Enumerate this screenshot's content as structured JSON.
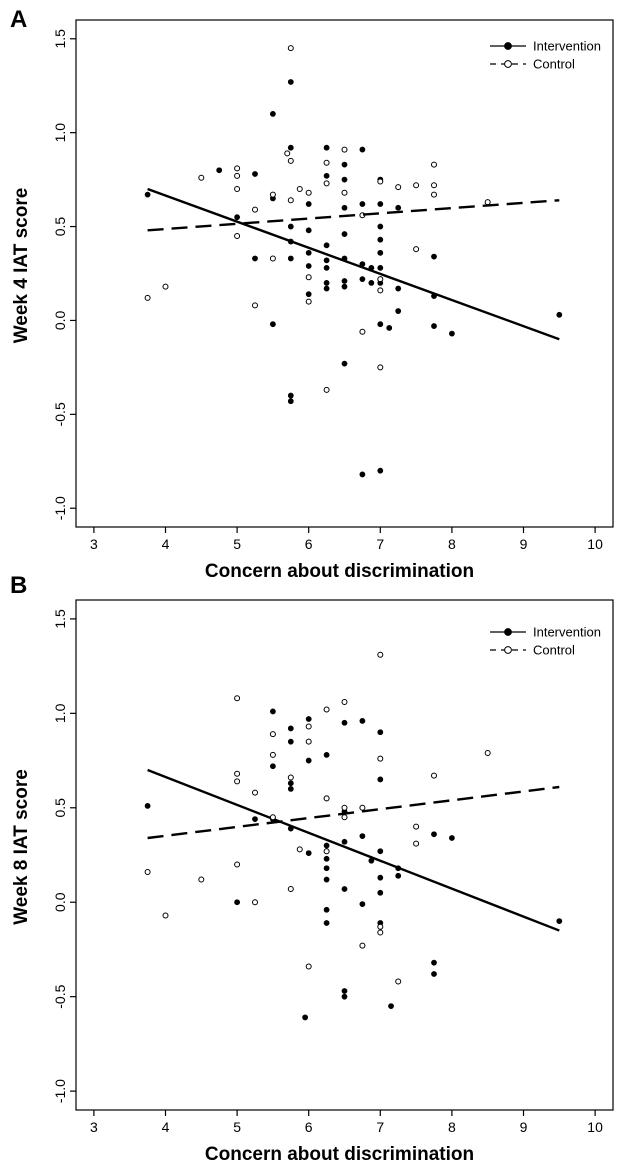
{
  "colors": {
    "background": "#ffffff",
    "ink": "#000000"
  },
  "chart_data": [
    {
      "type": "scatter",
      "panel_label": "A",
      "xlabel": "Concern about discrimination",
      "ylabel": "Week 4 IAT score",
      "xlim": [
        2.75,
        10.25
      ],
      "ylim": [
        -1.1,
        1.6
      ],
      "xticks": [
        3,
        4,
        5,
        6,
        7,
        8,
        9,
        10
      ],
      "yticks": [
        -1.0,
        -0.5,
        0.0,
        0.5,
        1.0,
        1.5
      ],
      "legend_position": "top-right",
      "legend": [
        "Intervention",
        "Control"
      ],
      "series": [
        {
          "name": "Intervention",
          "marker": "filled-circle",
          "line_style": "solid",
          "fit": {
            "x": [
              3.75,
              9.5
            ],
            "y": [
              0.7,
              -0.1
            ]
          },
          "points": [
            [
              3.75,
              0.67
            ],
            [
              4.75,
              0.8
            ],
            [
              5.0,
              0.55
            ],
            [
              5.25,
              0.78
            ],
            [
              5.25,
              0.33
            ],
            [
              5.5,
              1.1
            ],
            [
              5.5,
              0.65
            ],
            [
              5.5,
              -0.02
            ],
            [
              5.75,
              1.27
            ],
            [
              5.75,
              0.92
            ],
            [
              5.75,
              0.42
            ],
            [
              5.75,
              0.33
            ],
            [
              5.75,
              -0.4
            ],
            [
              5.75,
              -0.43
            ],
            [
              5.75,
              0.5
            ],
            [
              6.0,
              0.62
            ],
            [
              6.0,
              0.48
            ],
            [
              6.0,
              0.36
            ],
            [
              6.0,
              0.29
            ],
            [
              6.0,
              0.14
            ],
            [
              6.25,
              0.92
            ],
            [
              6.25,
              0.77
            ],
            [
              6.25,
              0.4
            ],
            [
              6.25,
              0.32
            ],
            [
              6.25,
              0.28
            ],
            [
              6.25,
              0.2
            ],
            [
              6.25,
              0.17
            ],
            [
              6.5,
              0.83
            ],
            [
              6.5,
              0.75
            ],
            [
              6.5,
              0.6
            ],
            [
              6.5,
              0.46
            ],
            [
              6.5,
              0.33
            ],
            [
              6.5,
              0.21
            ],
            [
              6.5,
              0.18
            ],
            [
              6.5,
              -0.23
            ],
            [
              6.75,
              0.91
            ],
            [
              6.75,
              0.62
            ],
            [
              6.75,
              0.3
            ],
            [
              6.75,
              0.22
            ],
            [
              6.75,
              -0.82
            ],
            [
              6.875,
              0.28
            ],
            [
              6.875,
              0.2
            ],
            [
              7.0,
              0.75
            ],
            [
              7.0,
              0.62
            ],
            [
              7.0,
              0.5
            ],
            [
              7.0,
              0.43
            ],
            [
              7.0,
              0.36
            ],
            [
              7.0,
              0.28
            ],
            [
              7.0,
              0.2
            ],
            [
              7.0,
              -0.02
            ],
            [
              7.0,
              -0.8
            ],
            [
              7.125,
              -0.04
            ],
            [
              7.25,
              0.6
            ],
            [
              7.25,
              0.17
            ],
            [
              7.25,
              0.05
            ],
            [
              7.75,
              0.34
            ],
            [
              7.75,
              0.13
            ],
            [
              7.75,
              -0.03
            ],
            [
              8.0,
              -0.07
            ],
            [
              9.5,
              0.03
            ]
          ]
        },
        {
          "name": "Control",
          "marker": "open-circle",
          "line_style": "dashed",
          "fit": {
            "x": [
              3.75,
              9.5
            ],
            "y": [
              0.48,
              0.64
            ]
          },
          "points": [
            [
              3.75,
              0.12
            ],
            [
              4.0,
              0.18
            ],
            [
              4.5,
              0.76
            ],
            [
              5.0,
              0.81
            ],
            [
              5.0,
              0.77
            ],
            [
              5.0,
              0.7
            ],
            [
              5.0,
              0.45
            ],
            [
              5.25,
              0.59
            ],
            [
              5.25,
              0.08
            ],
            [
              5.5,
              0.67
            ],
            [
              5.5,
              0.33
            ],
            [
              5.7,
              0.89
            ],
            [
              5.75,
              1.45
            ],
            [
              5.75,
              0.85
            ],
            [
              5.75,
              0.64
            ],
            [
              5.875,
              0.7
            ],
            [
              6.0,
              0.68
            ],
            [
              6.0,
              0.23
            ],
            [
              6.0,
              0.1
            ],
            [
              6.25,
              0.84
            ],
            [
              6.25,
              0.73
            ],
            [
              6.25,
              -0.37
            ],
            [
              6.5,
              0.91
            ],
            [
              6.5,
              0.68
            ],
            [
              6.75,
              0.56
            ],
            [
              6.75,
              -0.06
            ],
            [
              7.0,
              0.74
            ],
            [
              7.0,
              0.22
            ],
            [
              7.0,
              0.16
            ],
            [
              7.0,
              -0.25
            ],
            [
              7.25,
              0.71
            ],
            [
              7.5,
              0.72
            ],
            [
              7.5,
              0.38
            ],
            [
              7.75,
              0.83
            ],
            [
              7.75,
              0.72
            ],
            [
              7.75,
              0.67
            ],
            [
              8.5,
              0.63
            ]
          ]
        }
      ]
    },
    {
      "type": "scatter",
      "panel_label": "B",
      "xlabel": "Concern about discrimination",
      "ylabel": "Week 8 IAT score",
      "xlim": [
        2.75,
        10.25
      ],
      "ylim": [
        -1.1,
        1.6
      ],
      "xticks": [
        3,
        4,
        5,
        6,
        7,
        8,
        9,
        10
      ],
      "yticks": [
        -1.0,
        -0.5,
        0.0,
        0.5,
        1.0,
        1.5
      ],
      "legend_position": "top-right",
      "legend": [
        "Intervention",
        "Control"
      ],
      "series": [
        {
          "name": "Intervention",
          "marker": "filled-circle",
          "line_style": "solid",
          "fit": {
            "x": [
              3.75,
              9.5
            ],
            "y": [
              0.7,
              -0.15
            ]
          },
          "points": [
            [
              3.75,
              0.51
            ],
            [
              5.0,
              0.0
            ],
            [
              5.25,
              0.44
            ],
            [
              5.5,
              1.01
            ],
            [
              5.5,
              0.72
            ],
            [
              5.5,
              0.44
            ],
            [
              5.75,
              0.92
            ],
            [
              5.75,
              0.85
            ],
            [
              5.75,
              0.63
            ],
            [
              5.75,
              0.6
            ],
            [
              5.75,
              0.39
            ],
            [
              6.0,
              0.97
            ],
            [
              6.0,
              0.75
            ],
            [
              6.0,
              0.26
            ],
            [
              5.95,
              -0.61
            ],
            [
              6.25,
              0.78
            ],
            [
              6.25,
              0.55
            ],
            [
              6.25,
              0.3
            ],
            [
              6.25,
              0.23
            ],
            [
              6.25,
              0.18
            ],
            [
              6.25,
              0.12
            ],
            [
              6.25,
              -0.04
            ],
            [
              6.25,
              -0.11
            ],
            [
              6.5,
              0.95
            ],
            [
              6.5,
              0.48
            ],
            [
              6.5,
              0.32
            ],
            [
              6.5,
              0.07
            ],
            [
              6.5,
              -0.47
            ],
            [
              6.5,
              -0.5
            ],
            [
              6.75,
              0.96
            ],
            [
              6.75,
              0.35
            ],
            [
              6.75,
              -0.01
            ],
            [
              6.875,
              0.22
            ],
            [
              7.0,
              0.9
            ],
            [
              7.0,
              0.65
            ],
            [
              7.0,
              0.27
            ],
            [
              7.0,
              0.13
            ],
            [
              7.0,
              0.05
            ],
            [
              7.0,
              -0.11
            ],
            [
              7.15,
              -0.55
            ],
            [
              7.25,
              0.18
            ],
            [
              7.25,
              0.14
            ],
            [
              7.75,
              0.36
            ],
            [
              7.75,
              -0.32
            ],
            [
              7.75,
              -0.38
            ],
            [
              8.0,
              0.34
            ],
            [
              9.5,
              -0.1
            ]
          ]
        },
        {
          "name": "Control",
          "marker": "open-circle",
          "line_style": "dashed",
          "fit": {
            "x": [
              3.75,
              9.5
            ],
            "y": [
              0.34,
              0.61
            ]
          },
          "points": [
            [
              3.75,
              0.16
            ],
            [
              4.0,
              -0.07
            ],
            [
              4.5,
              0.12
            ],
            [
              5.0,
              1.08
            ],
            [
              5.0,
              0.68
            ],
            [
              5.0,
              0.64
            ],
            [
              5.0,
              0.2
            ],
            [
              5.25,
              0.58
            ],
            [
              5.25,
              0.0
            ],
            [
              5.5,
              0.89
            ],
            [
              5.5,
              0.78
            ],
            [
              5.5,
              0.45
            ],
            [
              5.75,
              0.66
            ],
            [
              5.75,
              0.07
            ],
            [
              5.875,
              0.28
            ],
            [
              6.0,
              0.93
            ],
            [
              6.0,
              0.85
            ],
            [
              6.0,
              -0.34
            ],
            [
              6.25,
              1.02
            ],
            [
              6.25,
              0.55
            ],
            [
              6.25,
              0.27
            ],
            [
              6.5,
              1.06
            ],
            [
              6.5,
              0.5
            ],
            [
              6.5,
              0.45
            ],
            [
              6.75,
              0.5
            ],
            [
              6.75,
              -0.23
            ],
            [
              7.0,
              1.31
            ],
            [
              7.0,
              0.76
            ],
            [
              7.0,
              -0.13
            ],
            [
              7.0,
              -0.16
            ],
            [
              7.25,
              -0.42
            ],
            [
              7.5,
              0.4
            ],
            [
              7.5,
              0.31
            ],
            [
              7.75,
              0.67
            ],
            [
              8.5,
              0.79
            ]
          ]
        }
      ]
    }
  ]
}
